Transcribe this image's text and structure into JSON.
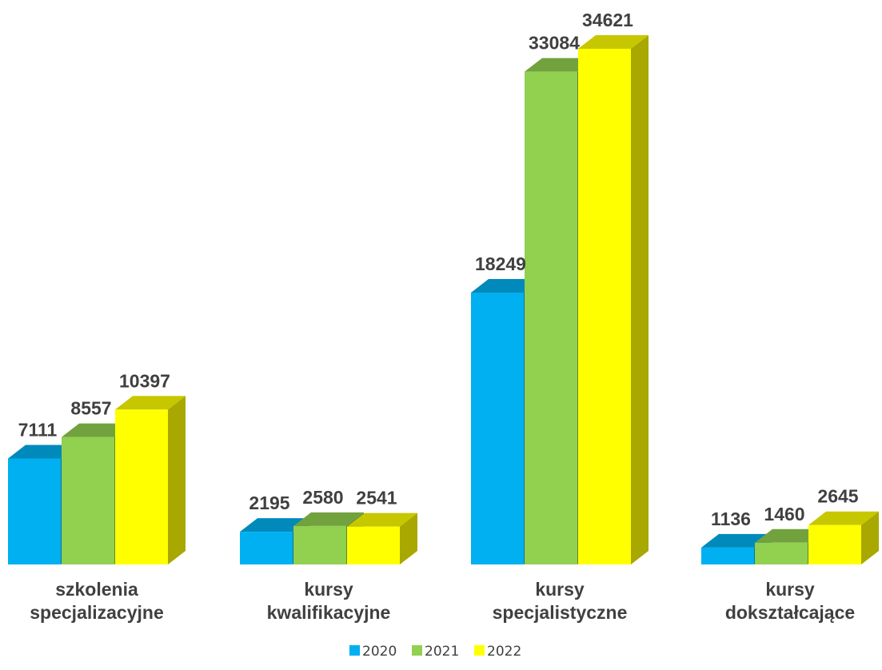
{
  "chart_data": {
    "type": "bar",
    "title": "",
    "xlabel": "",
    "ylabel": "",
    "ylim": [
      0,
      37000
    ],
    "grid": false,
    "legend": "bottom",
    "categories": [
      [
        "szkolenia",
        "specjalizacyjne"
      ],
      [
        "kursy",
        "kwalifikacyjne"
      ],
      [
        "kursy",
        "specjalistyczne"
      ],
      [
        "kursy",
        "dokształcające"
      ]
    ],
    "series": [
      {
        "name": "2020",
        "color": "#00b0f0",
        "values": [
          7111,
          2195,
          18249,
          1136
        ]
      },
      {
        "name": "2021",
        "color": "#92d050",
        "values": [
          8557,
          2580,
          33084,
          1460
        ]
      },
      {
        "name": "2022",
        "color": "#ffff00",
        "values": [
          10397,
          2541,
          34621,
          2645
        ]
      }
    ]
  }
}
